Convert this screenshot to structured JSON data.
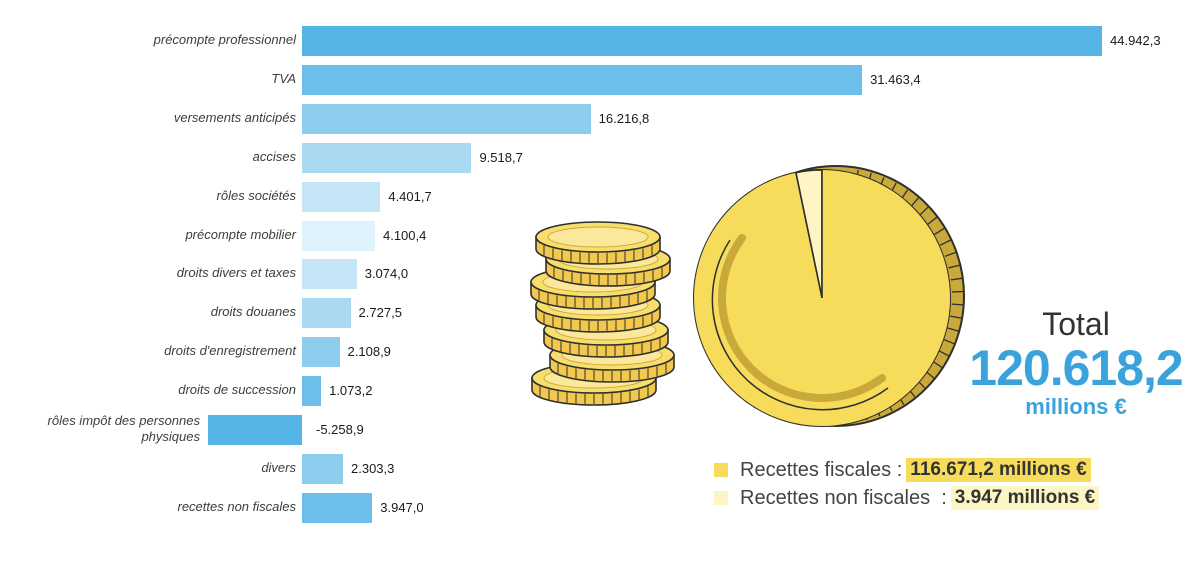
{
  "chart_data": {
    "type": "bar",
    "orientation": "horizontal",
    "categories": [
      "précompte professionnel",
      "TVA",
      "versements anticipés",
      "accises",
      "rôles sociétés",
      "précompte mobilier",
      "droits divers et taxes",
      "droits douanes",
      "droits d'enregistrement",
      "droits de succession",
      "rôles impôt des personnes physiques",
      "divers",
      "recettes non fiscales"
    ],
    "values": [
      44942.3,
      31463.4,
      16216.8,
      9518.7,
      4401.7,
      4100.4,
      3074.0,
      2727.5,
      2108.9,
      1073.2,
      -5258.9,
      2303.3,
      3947.0
    ],
    "value_labels": [
      "44.942,3",
      "31.463,4",
      "16.216,8",
      "9.518,7",
      "4.401,7",
      "4.100,4",
      "3.074,0",
      "2.727,5",
      "2.108,9",
      "1.073,2",
      "-5.258,9",
      "2.303,3",
      "3.947,0"
    ],
    "bar_colors": [
      "#55b4e6",
      "#6cbfea",
      "#8dceef",
      "#a9daf2",
      "#c5e6f6",
      "#dff1fa",
      "#c5e6f6",
      "#a9daf2",
      "#8dceef",
      "#6cbfea",
      "#55b4e6",
      "#8dceef",
      "#6cbfea"
    ],
    "title": "",
    "xlabel": "",
    "ylabel": ""
  },
  "pie": {
    "type": "pie",
    "slices": [
      {
        "label": "Recettes fiscales",
        "value": 116671.2,
        "color": "#f6dc5a"
      },
      {
        "label": "Recettes non fiscales",
        "value": 3947,
        "color": "#fdf5c4"
      }
    ]
  },
  "total": {
    "label": "Total",
    "value": "120.618,2",
    "unit": "millions €"
  },
  "legend": [
    {
      "text": "Recettes fiscales :",
      "value": "116.671,2 millions €",
      "color": "#f6dc5a",
      "value_bg": "#f6dc5a"
    },
    {
      "text": "Recettes non fiscales  :",
      "value": "3.947 millions €",
      "color": "#fdf5c4",
      "value_bg": "#fdf5c4"
    }
  ]
}
